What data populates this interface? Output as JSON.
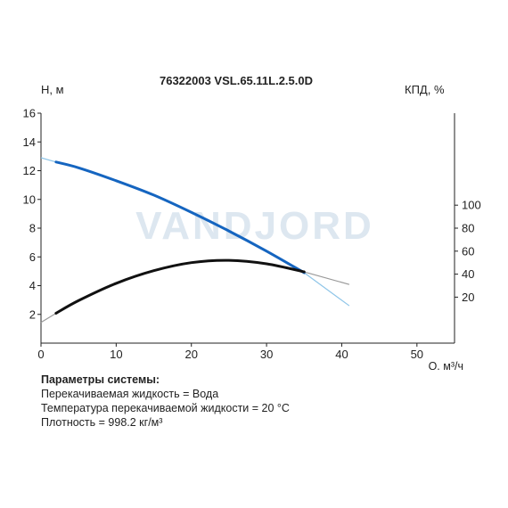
{
  "chart_data": {
    "type": "line",
    "title": "76322003 VSL.65.11L.2.5.0D",
    "ylabel": "Н, м",
    "y2label": "КПД, %",
    "xlabel": "Q, м³/ч",
    "xlim": [
      0,
      55
    ],
    "ylim": [
      0,
      16
    ],
    "y2lim": [
      -20,
      180
    ],
    "x_ticks": [
      0,
      10,
      20,
      30,
      40,
      50
    ],
    "y_ticks": [
      2,
      4,
      6,
      8,
      10,
      12,
      14,
      16
    ],
    "y2_ticks": [
      20,
      40,
      60,
      80,
      100
    ],
    "grid": false,
    "watermark": "VANDJORD",
    "series": [
      {
        "axis": "left",
        "color": "#1565c0",
        "extension_color": "#8ec5e8",
        "x": [
          2,
          5,
          10,
          15,
          20,
          25,
          30,
          35
        ],
        "values": [
          12.6,
          12.2,
          11.3,
          10.3,
          9.1,
          7.8,
          6.4,
          4.9
        ],
        "extension_x": [
          0,
          2,
          35,
          41
        ],
        "extension_values": [
          12.9,
          12.6,
          4.9,
          2.6
        ]
      },
      {
        "axis": "right",
        "color": "#111111",
        "extension_color": "#999999",
        "x": [
          2,
          5,
          10,
          15,
          20,
          25,
          30,
          35
        ],
        "values": [
          6,
          17,
          32,
          43,
          50,
          52,
          49,
          42
        ],
        "extension_x": [
          0,
          2,
          35,
          41
        ],
        "extension_values": [
          -2,
          6,
          42,
          31
        ]
      }
    ]
  },
  "params": {
    "heading": "Параметры системы:",
    "lines": [
      "Перекачиваемая жидкость = Вода",
      "Температура перекачиваемой жидкости = 20 °C",
      "Плотность = 998.2 кг/м³"
    ]
  }
}
